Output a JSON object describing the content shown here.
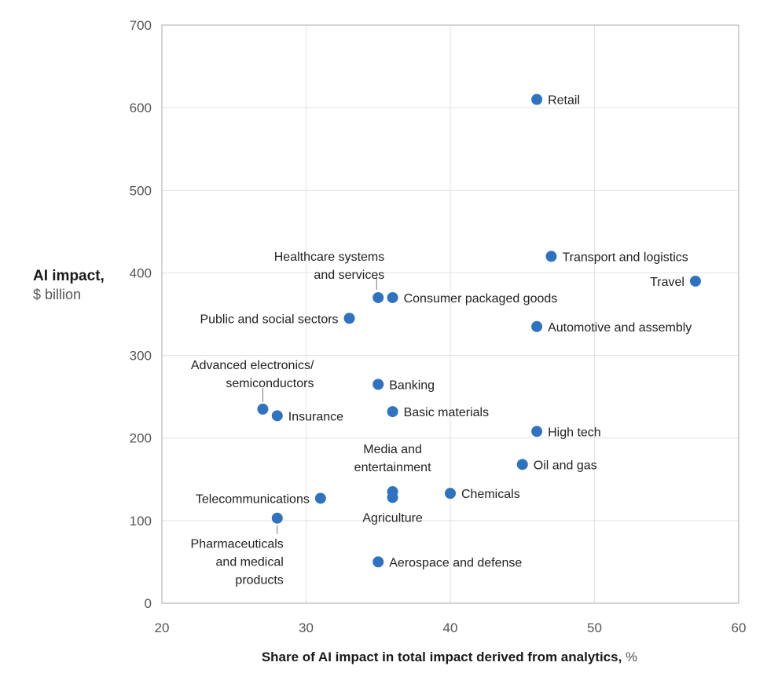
{
  "chart_data": {
    "type": "scatter",
    "xlabel": "Share of AI impact in total impact derived from analytics,",
    "xlabel_unit": "%",
    "ylabel": "AI impact,",
    "ylabel_unit": "$ billion",
    "xlim": [
      20,
      60
    ],
    "ylim": [
      0,
      700
    ],
    "x_ticks": [
      "20",
      "30",
      "40",
      "50",
      "60"
    ],
    "y_ticks": [
      "0",
      "100",
      "200",
      "300",
      "400",
      "500",
      "600",
      "700"
    ],
    "grid": true,
    "marker_color": "#2f72c0",
    "points": [
      {
        "label": [
          "Retail"
        ],
        "x": 46,
        "y": 610
      },
      {
        "label": [
          "Transport and logistics"
        ],
        "x": 47,
        "y": 420
      },
      {
        "label": [
          "Travel"
        ],
        "x": 57,
        "y": 390
      },
      {
        "label": [
          "Healthcare systems",
          "and services"
        ],
        "x": 35,
        "y": 370
      },
      {
        "label": [
          "Consumer packaged goods"
        ],
        "x": 36,
        "y": 370
      },
      {
        "label": [
          "Public and social sectors"
        ],
        "x": 33,
        "y": 345
      },
      {
        "label": [
          "Automotive and assembly"
        ],
        "x": 46,
        "y": 335
      },
      {
        "label": [
          "Banking"
        ],
        "x": 35,
        "y": 265
      },
      {
        "label": [
          "Advanced electronics/",
          "semiconductors"
        ],
        "x": 27,
        "y": 235
      },
      {
        "label": [
          "Insurance"
        ],
        "x": 28,
        "y": 227
      },
      {
        "label": [
          "Basic materials"
        ],
        "x": 36,
        "y": 232
      },
      {
        "label": [
          "High tech"
        ],
        "x": 46,
        "y": 208
      },
      {
        "label": [
          "Oil and gas"
        ],
        "x": 45,
        "y": 168
      },
      {
        "label": [
          "Media and",
          "entertainment"
        ],
        "x": 36,
        "y": 135
      },
      {
        "label": [
          "Agriculture"
        ],
        "x": 36,
        "y": 128
      },
      {
        "label": [
          "Chemicals"
        ],
        "x": 40,
        "y": 133
      },
      {
        "label": [
          "Telecommunications"
        ],
        "x": 31,
        "y": 127
      },
      {
        "label": [
          "Pharmaceuticals",
          "and medical",
          "products"
        ],
        "x": 28,
        "y": 103
      },
      {
        "label": [
          "Aerospace and defense"
        ],
        "x": 35,
        "y": 50
      }
    ]
  }
}
